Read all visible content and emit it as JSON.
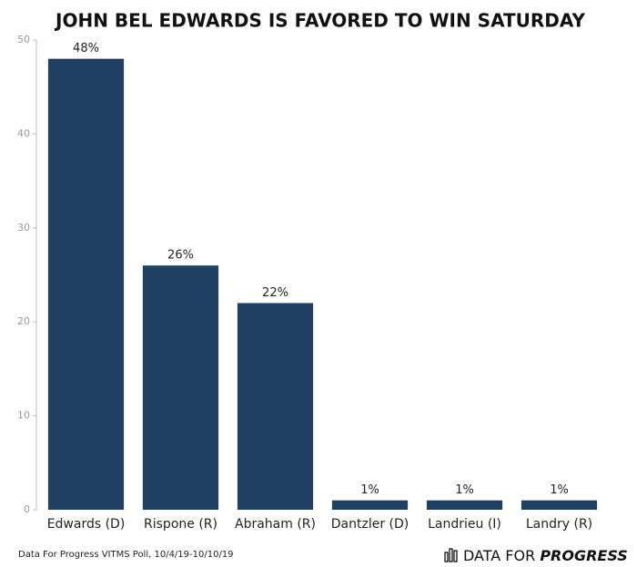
{
  "chart_data": {
    "type": "bar",
    "title": "JOHN BEL EDWARDS IS FAVORED TO WIN SATURDAY",
    "categories": [
      "Edwards (D)",
      "Rispone (R)",
      "Abraham (R)",
      "Dantzler (D)",
      "Landrieu (I)",
      "Landry (R)"
    ],
    "values": [
      48,
      26,
      22,
      1,
      1,
      1
    ],
    "value_labels": [
      "48%",
      "26%",
      "22%",
      "1%",
      "1%",
      "1%"
    ],
    "color": "#1f3f63",
    "ylim": [
      0,
      50
    ],
    "yticks": [
      0,
      10,
      20,
      30,
      40,
      50
    ],
    "grid": false,
    "source": "Data For Progress VITMS Poll, 10/4/19-10/10/19",
    "logo_text": "DATA FOR",
    "logo_emphasis": "PROGRESS"
  }
}
